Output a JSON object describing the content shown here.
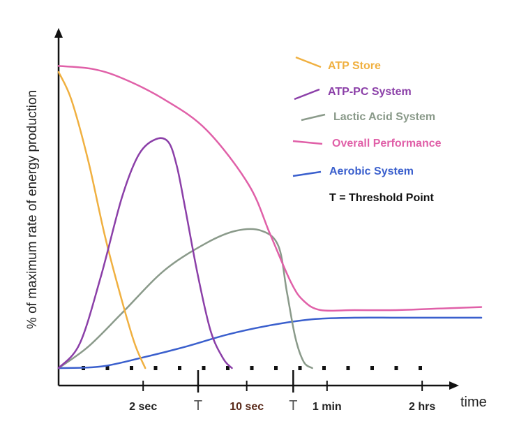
{
  "chart_data": {
    "type": "line",
    "title": "",
    "ylabel": "% of maximum rate of energy production",
    "xlabel": "time",
    "ylim": [
      0,
      100
    ],
    "x_tick_labels": [
      {
        "label": "2 sec",
        "x": 2,
        "color": "#222222"
      },
      {
        "label": "10 sec",
        "x": 4.45,
        "color": "#5a2a1a"
      },
      {
        "label": "1 min",
        "x": 6.35,
        "color": "#222222"
      },
      {
        "label": "2 hrs",
        "x": 8.6,
        "color": "#222222"
      }
    ],
    "threshold_markers": [
      {
        "label": "T",
        "x": 3.3
      },
      {
        "label": "T",
        "x": 5.55
      }
    ],
    "series": [
      {
        "name": "ATP Store",
        "color": "#f0b040",
        "x": [
          0,
          0.3,
          0.7,
          1.1,
          1.5,
          1.8,
          2.05
        ],
        "y": [
          97,
          88,
          68,
          43,
          22,
          8,
          0
        ]
      },
      {
        "name": "ATP-PC System",
        "color": "#8b3fa8",
        "x": [
          0,
          0.5,
          1.0,
          1.5,
          1.9,
          2.3,
          2.6,
          2.8,
          3.0,
          3.3,
          3.6,
          3.9,
          4.1
        ],
        "y": [
          0,
          8,
          30,
          56,
          70,
          75,
          74,
          66,
          52,
          30,
          12,
          3,
          0
        ]
      },
      {
        "name": "Lactic Acid System",
        "color": "#8a9a8a",
        "x": [
          0,
          0.7,
          1.5,
          2.5,
          3.5,
          4.2,
          4.8,
          5.2,
          5.4,
          5.6,
          5.8,
          6.0
        ],
        "y": [
          0,
          7,
          18,
          32,
          41,
          45,
          45,
          40,
          25,
          10,
          2,
          0
        ]
      },
      {
        "name": "Overall Performance",
        "color": "#e060a8",
        "x": [
          0,
          0.8,
          1.5,
          2.5,
          3.5,
          4.5,
          5.0,
          5.5,
          5.8,
          6.2,
          7,
          8,
          9,
          10
        ],
        "y": [
          99,
          98,
          95,
          88,
          78,
          60,
          44,
          28,
          22,
          19,
          19,
          19,
          19.5,
          20
        ]
      },
      {
        "name": "Aerobic System",
        "color": "#3a5fcd",
        "x": [
          0,
          1,
          2,
          3,
          4,
          5,
          6,
          7,
          8,
          9,
          10
        ],
        "y": [
          0,
          0.5,
          3.5,
          7,
          11,
          14,
          16,
          16.5,
          16.5,
          16.5,
          16.5
        ]
      }
    ],
    "legend": {
      "placement": "top-right",
      "note": "T = Threshold Point"
    },
    "grid": false
  }
}
